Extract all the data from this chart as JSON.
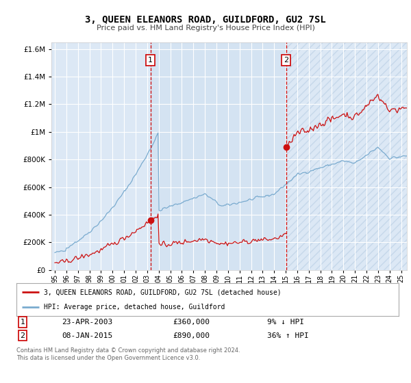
{
  "title": "3, QUEEN ELEANORS ROAD, GUILDFORD, GU2 7SL",
  "subtitle": "Price paid vs. HM Land Registry's House Price Index (HPI)",
  "legend_line1": "3, QUEEN ELEANORS ROAD, GUILDFORD, GU2 7SL (detached house)",
  "legend_line2": "HPI: Average price, detached house, Guildford",
  "transaction1_label": "1",
  "transaction1_date": "23-APR-2003",
  "transaction1_price": "£360,000",
  "transaction1_hpi": "9% ↓ HPI",
  "transaction2_label": "2",
  "transaction2_date": "08-JAN-2015",
  "transaction2_price": "£890,000",
  "transaction2_hpi": "36% ↑ HPI",
  "footer": "Contains HM Land Registry data © Crown copyright and database right 2024.\nThis data is licensed under the Open Government Licence v3.0.",
  "vline1_x": 2003.29,
  "vline2_x": 2015.03,
  "sale1_x": 2003.29,
  "sale1_y": 360000,
  "sale2_x": 2015.03,
  "sale2_y": 890000,
  "hpi_color": "#7aabcf",
  "property_color": "#cc1111",
  "vline_color": "#cc0000",
  "background_color": "#ffffff",
  "plot_bg_color": "#dce8f5",
  "shade_between_color": "#cddff0",
  "ylim": [
    0,
    1650000
  ],
  "xlim": [
    1994.7,
    2025.5
  ],
  "yticks": [
    0,
    200000,
    400000,
    600000,
    800000,
    1000000,
    1200000,
    1400000,
    1600000
  ],
  "xticks": [
    1995,
    1996,
    1997,
    1998,
    1999,
    2000,
    2001,
    2002,
    2003,
    2004,
    2005,
    2006,
    2007,
    2008,
    2009,
    2010,
    2011,
    2012,
    2013,
    2014,
    2015,
    2016,
    2017,
    2018,
    2019,
    2020,
    2021,
    2022,
    2023,
    2024,
    2025
  ]
}
